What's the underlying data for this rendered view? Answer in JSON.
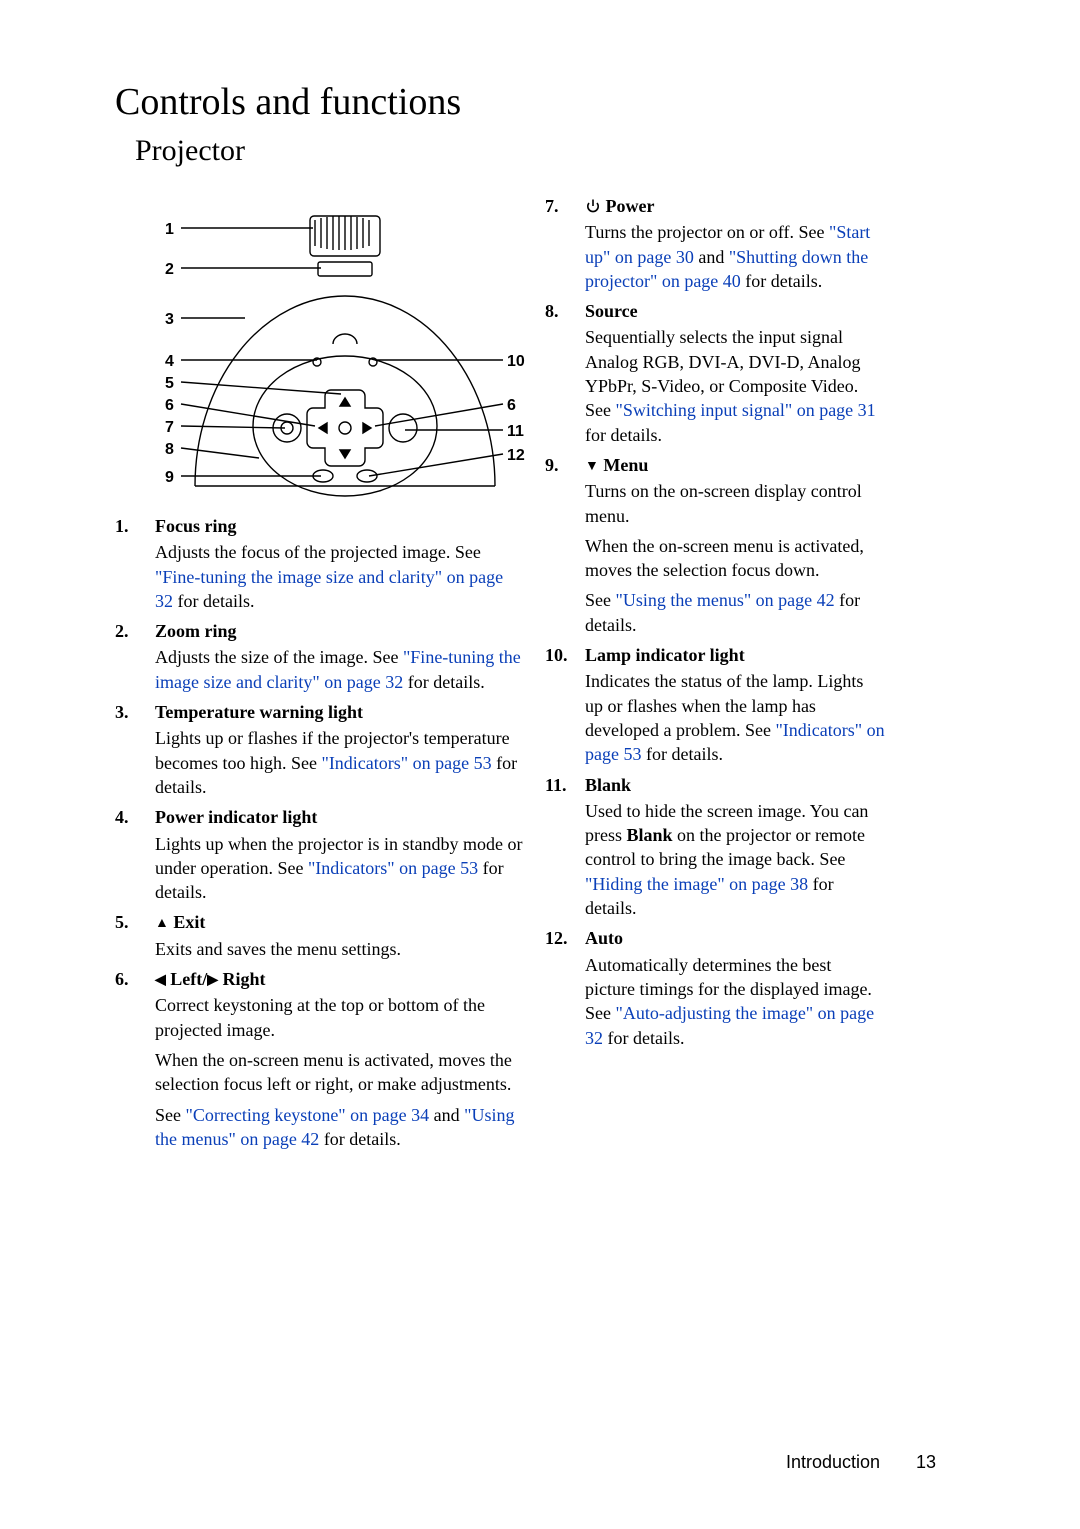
{
  "page": {
    "title": "Controls and functions",
    "subtitle": "Projector",
    "footer_section": "Introduction",
    "footer_page": "13"
  },
  "diagram": {
    "left_callouts": [
      "1",
      "2",
      "3",
      "4",
      "5",
      "6",
      "7",
      "8",
      "9"
    ],
    "right_callouts": [
      "10",
      "6",
      "11",
      "12"
    ],
    "stroke": "#000000",
    "linewidth": 1.4
  },
  "left_items": [
    {
      "n": "1.",
      "title": "Focus ring",
      "desc_parts": [
        {
          "t": "Adjusts the focus of the projected image. See "
        },
        {
          "t": "\"Fine-tuning the image size and clarity\" on page 32",
          "link": true
        },
        {
          "t": " for details."
        }
      ]
    },
    {
      "n": "2.",
      "title": "Zoom ring",
      "desc_parts": [
        {
          "t": "Adjusts the size of the image. See "
        },
        {
          "t": "\"Fine-tuning the image size and clarity\" on page 32",
          "link": true
        },
        {
          "t": " for details."
        }
      ]
    },
    {
      "n": "3.",
      "title": "Temperature warning light",
      "desc_parts": [
        {
          "t": "Lights up or flashes if the projector's temperature becomes too high. See "
        },
        {
          "t": "\"Indicators\" on page 53",
          "link": true
        },
        {
          "t": " for details."
        }
      ]
    },
    {
      "n": "4.",
      "title": "Power indicator light",
      "desc_parts": [
        {
          "t": "Lights up when the projector is in standby mode or under operation. See "
        },
        {
          "t": "\"Indicators\" on page 53",
          "link": true
        },
        {
          "t": " for details."
        }
      ]
    },
    {
      "n": "5.",
      "title_prefix_glyph": "▲",
      "title": " Exit",
      "desc_parts": [
        {
          "t": "Exits and saves the menu settings."
        }
      ]
    },
    {
      "n": "6.",
      "title_prefix_glyph": "◀",
      "title_mid": " Left/",
      "title_prefix_glyph2": "▶",
      "title": " Right",
      "desc_parts": [
        {
          "t": "Correct keystoning at the top or bottom of the projected image."
        },
        {
          "br": true
        },
        {
          "t": "When the on-screen menu is activated, moves the selection focus left or right, or make adjustments."
        },
        {
          "br": true
        },
        {
          "t": "See "
        },
        {
          "t": "\"Correcting keystone\" on page 34",
          "link": true
        },
        {
          "t": " and "
        },
        {
          "t": "\"Using the menus\" on page 42",
          "link": true
        },
        {
          "t": " for details."
        }
      ]
    }
  ],
  "right_items": [
    {
      "n": "7.",
      "title_power_icon": true,
      "title": " Power",
      "desc_parts": [
        {
          "t": "Turns the projector on or off. See "
        },
        {
          "t": "\"Start up\" on page 30",
          "link": true
        },
        {
          "t": " and "
        },
        {
          "t": "\"Shutting down the projector\" on page 40",
          "link": true
        },
        {
          "t": " for details."
        }
      ]
    },
    {
      "n": "8.",
      "title": "Source",
      "desc_parts": [
        {
          "t": "Sequentially selects the input signal Analog RGB, DVI-A, DVI-D, Analog YPbPr, S-Video, or Composite Video. See "
        },
        {
          "t": "\"Switching input signal\" on page 31",
          "link": true
        },
        {
          "t": " for details."
        }
      ]
    },
    {
      "n": "9.",
      "title_prefix_glyph": "▼",
      "title": " Menu",
      "desc_parts": [
        {
          "t": "Turns on the on-screen display control menu."
        },
        {
          "br": true
        },
        {
          "t": "When the on-screen menu is activated, moves the selection focus down."
        },
        {
          "br": true
        },
        {
          "t": "See "
        },
        {
          "t": "\"Using the menus\" on page 42",
          "link": true
        },
        {
          "t": " for details."
        }
      ]
    },
    {
      "n": "10.",
      "title": "Lamp indicator light",
      "desc_parts": [
        {
          "t": "Indicates the status of the lamp. Lights up or flashes when the lamp has developed a problem. See "
        },
        {
          "t": "\"Indicators\" on page 53",
          "link": true
        },
        {
          "t": " for details."
        }
      ]
    },
    {
      "n": "11.",
      "title": "Blank",
      "desc_parts": [
        {
          "t": "Used to hide the screen image. You can press "
        },
        {
          "t": "Blank",
          "bold": true
        },
        {
          "t": " on the projector or remote control to bring the image back. See "
        },
        {
          "t": "\"Hiding the image\" on page 38",
          "link": true
        },
        {
          "t": " for details."
        }
      ]
    },
    {
      "n": "12.",
      "title": "Auto",
      "desc_parts": [
        {
          "t": "Automatically determines the best picture timings for the displayed image. See "
        },
        {
          "t": "\"Auto-adjusting the image\" on page 32",
          "link": true
        },
        {
          "t": " for details."
        }
      ]
    }
  ]
}
